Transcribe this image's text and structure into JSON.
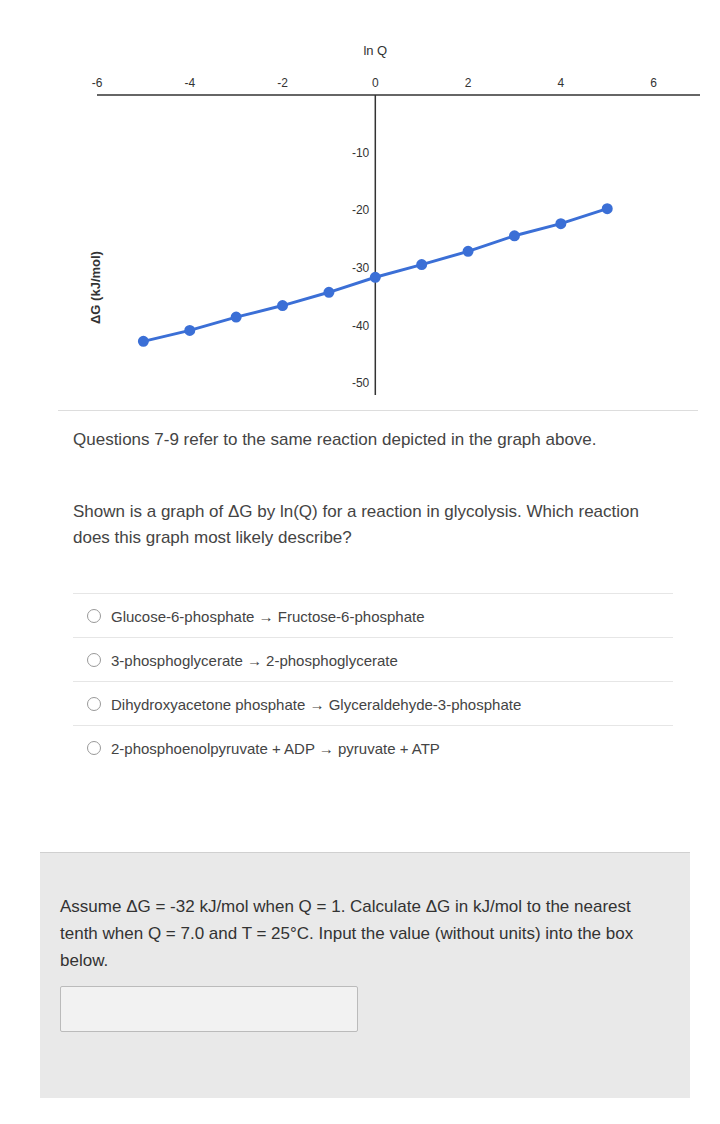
{
  "chart_data": {
    "type": "line",
    "xlabel": "ln Q",
    "ylabel": "ΔG (kJ/mol)",
    "x": [
      -5,
      -4,
      -3,
      -2,
      -1,
      0,
      1,
      2,
      3,
      4,
      5
    ],
    "values": [
      -42.7,
      -40.8,
      -38.5,
      -36.5,
      -34.2,
      -31.6,
      -29.4,
      -27.1,
      -24.4,
      -22.3,
      -19.7
    ],
    "color": "#3b6fd6",
    "marker": "circle",
    "xlim": [
      -6,
      7
    ],
    "xticks": [
      -6,
      -4,
      -2,
      0,
      2,
      4,
      6
    ],
    "ylim": [
      -52,
      0
    ],
    "yticks": [
      -10,
      -20,
      -30,
      -40,
      -50
    ]
  },
  "questions": {
    "intro": "Questions 7-9 refer to the same reaction depicted in the graph above.",
    "question_7": {
      "prompt": "Shown is a graph of ΔG by ln(Q) for a reaction in glycolysis. Which reaction does this graph most likely describe?",
      "options": [
        "Glucose-6-phosphate → Fructose-6-phosphate",
        "3-phosphoglycerate → 2-phosphoglycerate",
        "Dihydroxyacetone phosphate → Glyceraldehyde-3-phosphate",
        "2-phosphoenolpyruvate + ADP → pyruvate + ATP"
      ]
    },
    "question_8": {
      "prompt": "Assume ΔG = -32 kJ/mol when Q = 1. Calculate ΔG in kJ/mol to the nearest tenth when Q = 7.0 and T = 25°C. Input the value (without units) into the box below."
    }
  }
}
